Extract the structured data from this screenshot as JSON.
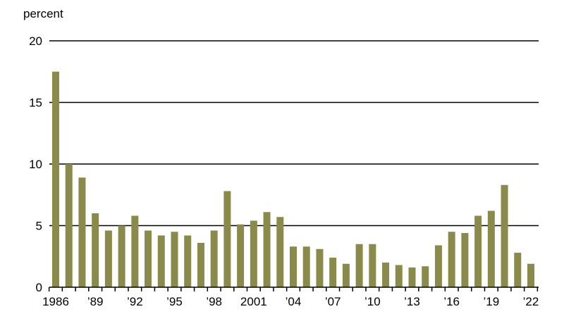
{
  "chart_data": {
    "type": "bar",
    "title": "",
    "xlabel": "",
    "ylabel": "percent",
    "ylim": [
      0,
      20
    ],
    "yticks": [
      0,
      5,
      10,
      15,
      20
    ],
    "grid": "horizontal",
    "bar_color": "#8a8a4a",
    "categories": [
      "1986",
      "1987",
      "1988",
      "1989",
      "1990",
      "1991",
      "1992",
      "1993",
      "1994",
      "1995",
      "1996",
      "1997",
      "1998",
      "1999",
      "2000",
      "2001",
      "2002",
      "2003",
      "2004",
      "2005",
      "2006",
      "2007",
      "2008",
      "2009",
      "2010",
      "2011",
      "2012",
      "2013",
      "2014",
      "2015",
      "2016",
      "2017",
      "2018",
      "2019",
      "2020",
      "2021",
      "2022"
    ],
    "values": [
      17.5,
      10.0,
      8.9,
      6.0,
      4.6,
      5.0,
      5.8,
      4.6,
      4.2,
      4.5,
      4.2,
      3.6,
      4.6,
      7.8,
      5.1,
      5.4,
      6.1,
      5.7,
      3.3,
      3.3,
      3.1,
      2.4,
      1.9,
      3.5,
      3.5,
      2.0,
      1.8,
      1.6,
      1.7,
      3.4,
      4.5,
      4.4,
      5.8,
      6.2,
      8.3,
      2.8,
      1.9
    ],
    "xtick_labels": [
      {
        "index": 0,
        "label": "1986"
      },
      {
        "index": 3,
        "label": "’89"
      },
      {
        "index": 6,
        "label": "’92"
      },
      {
        "index": 9,
        "label": "’95"
      },
      {
        "index": 12,
        "label": "’98"
      },
      {
        "index": 15,
        "label": "2001"
      },
      {
        "index": 18,
        "label": "’04"
      },
      {
        "index": 21,
        "label": "’07"
      },
      {
        "index": 24,
        "label": "’10"
      },
      {
        "index": 27,
        "label": "’13"
      },
      {
        "index": 30,
        "label": "’16"
      },
      {
        "index": 33,
        "label": "’19"
      },
      {
        "index": 36,
        "label": "’22"
      }
    ]
  }
}
